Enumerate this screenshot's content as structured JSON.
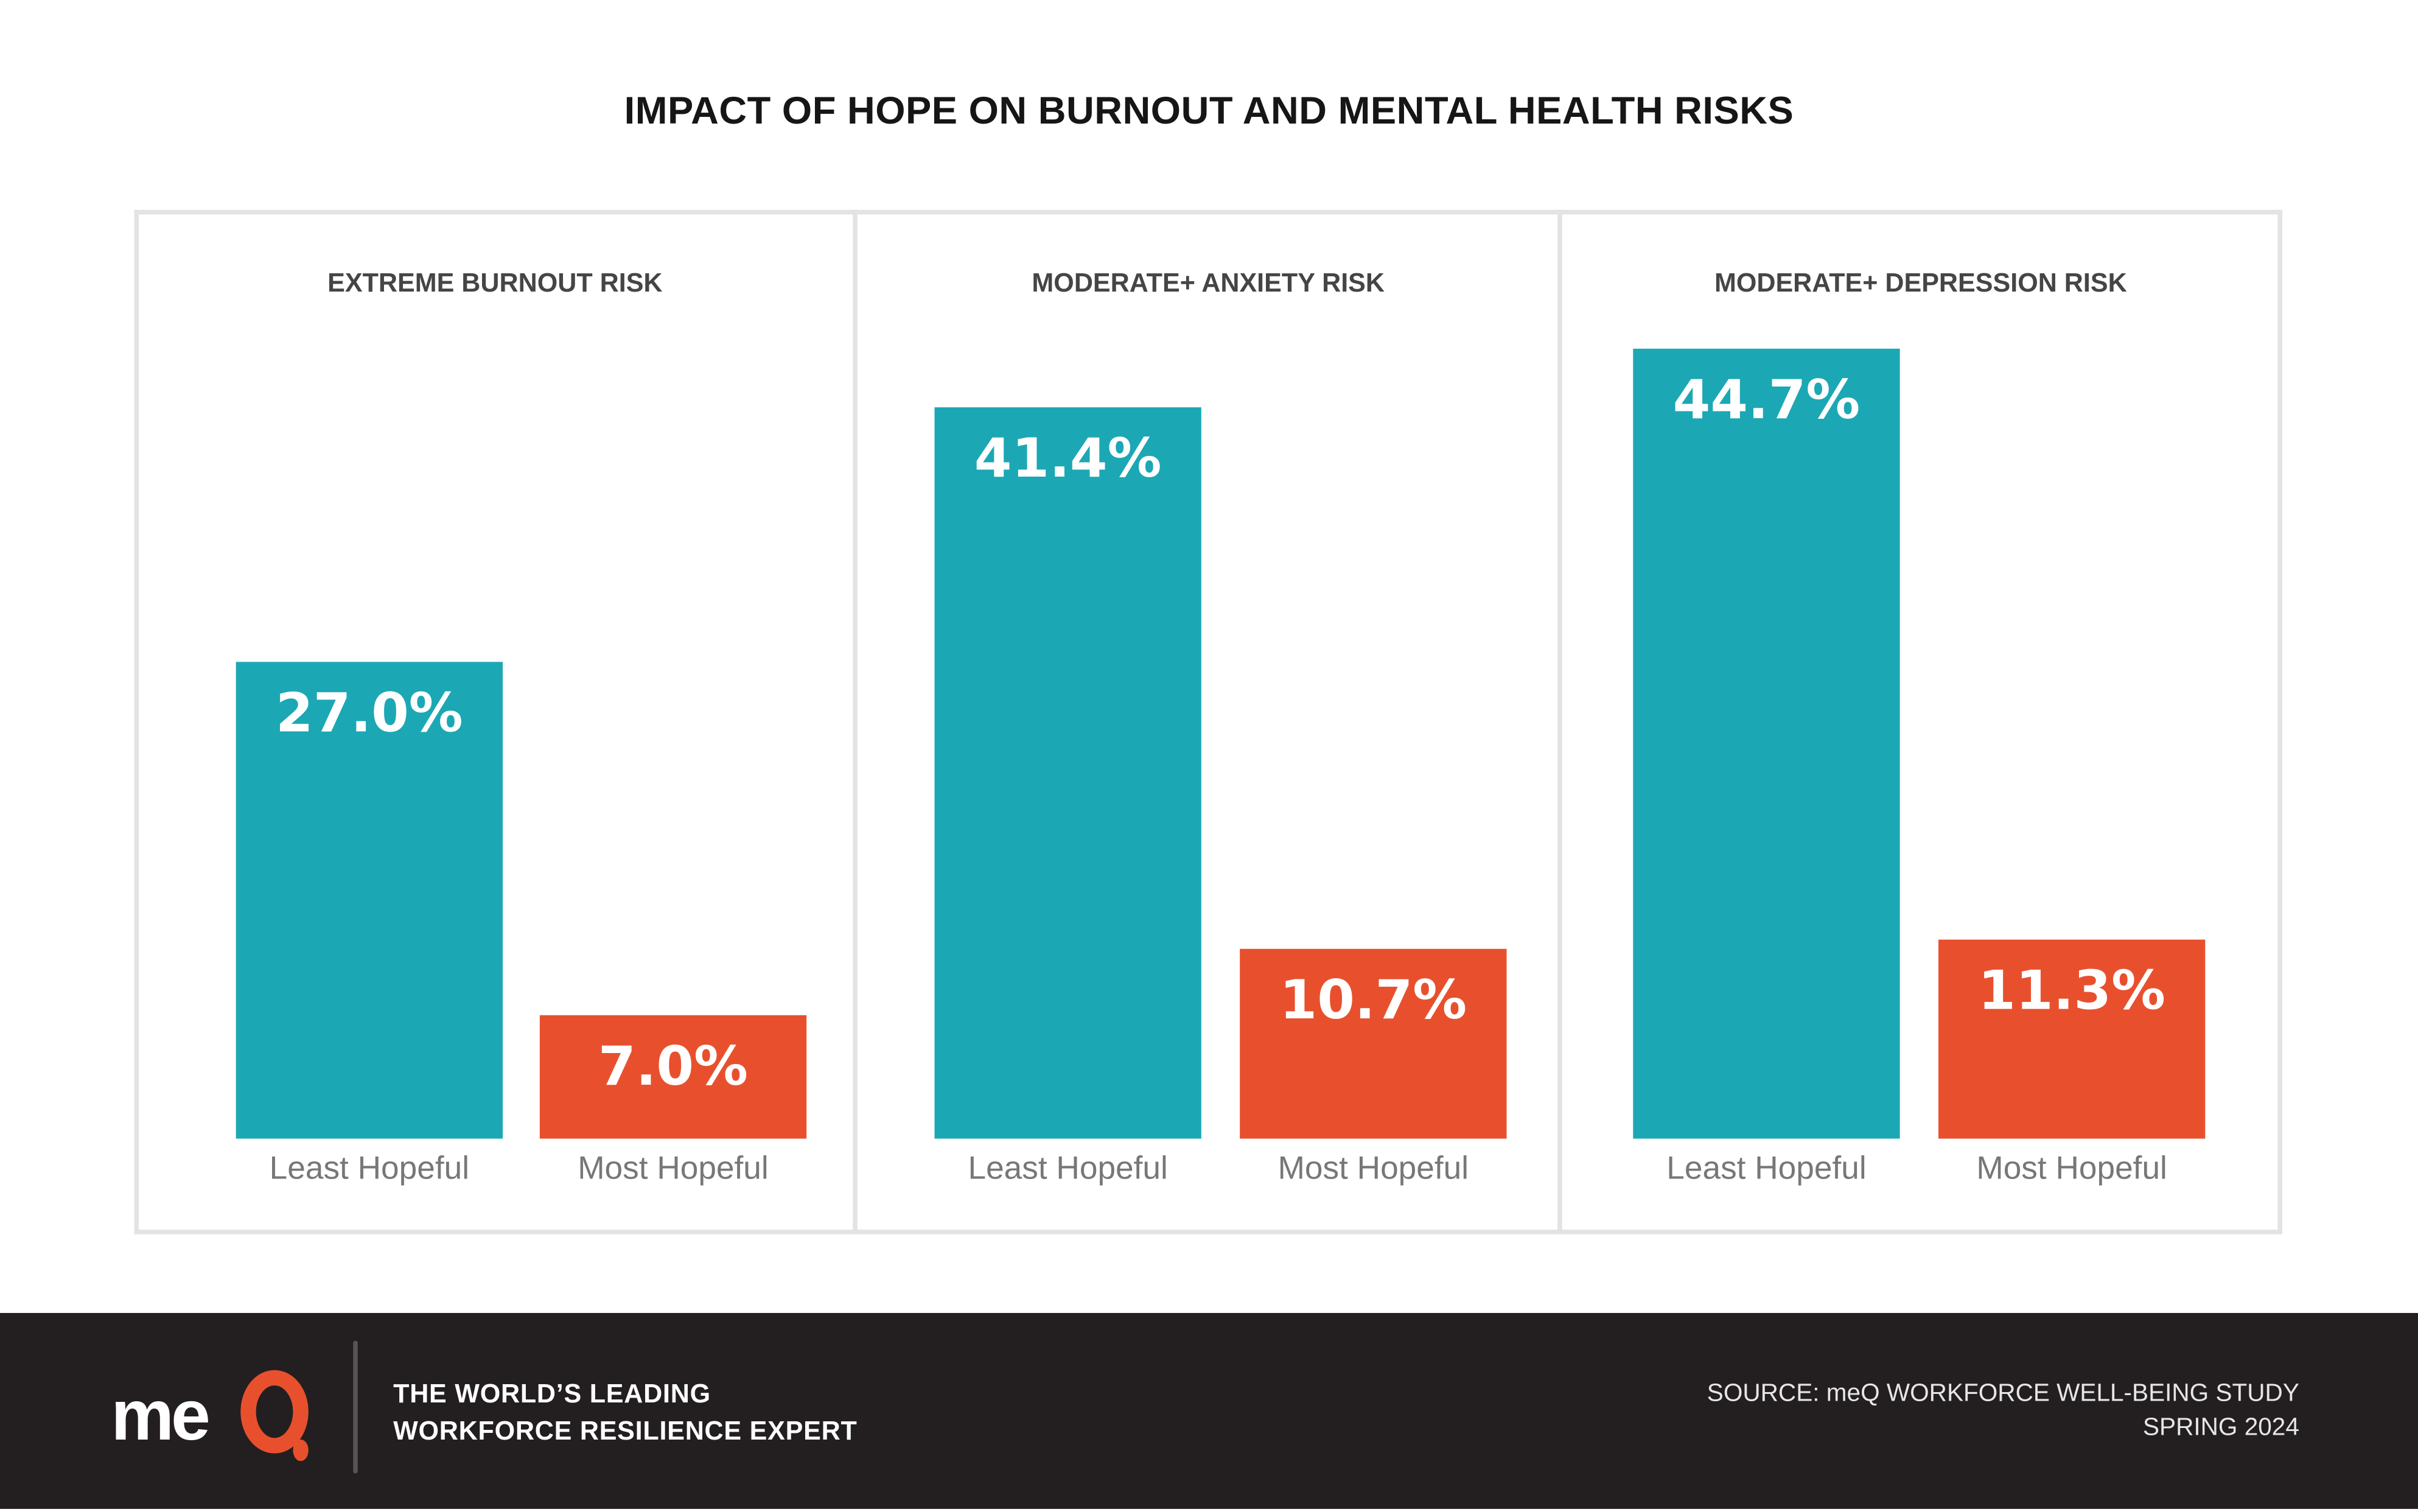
{
  "chart_data": {
    "type": "bar",
    "title": "IMPACT OF HOPE ON BURNOUT AND MENTAL HEALTH RISKS",
    "categories": [
      "Least Hopeful",
      "Most Hopeful"
    ],
    "unit": "%",
    "ylim": [
      0,
      50
    ],
    "grid": false,
    "colors": {
      "Least Hopeful": "#1ba8b4",
      "Most Hopeful": "#e8502d"
    },
    "panels": [
      {
        "title": "EXTREME BURNOUT RISK",
        "values": [
          27.0,
          7.0
        ],
        "labels": [
          "27.0%",
          "7.0%"
        ]
      },
      {
        "title": "MODERATE+ ANXIETY RISK",
        "values": [
          41.4,
          10.7
        ],
        "labels": [
          "41.4%",
          "10.7%"
        ]
      },
      {
        "title": "MODERATE+ DEPRESSION RISK",
        "values": [
          44.7,
          11.3
        ],
        "labels": [
          "44.7%",
          "11.3%"
        ]
      }
    ]
  },
  "footer": {
    "logo_text": "meQ",
    "tagline_1": "THE WORLD’S LEADING",
    "tagline_2": "WORKFORCE RESILIENCE EXPERT",
    "source_1": "SOURCE: meQ WORKFORCE WELL-BEING STUDY",
    "source_2": "SPRING 2024"
  }
}
